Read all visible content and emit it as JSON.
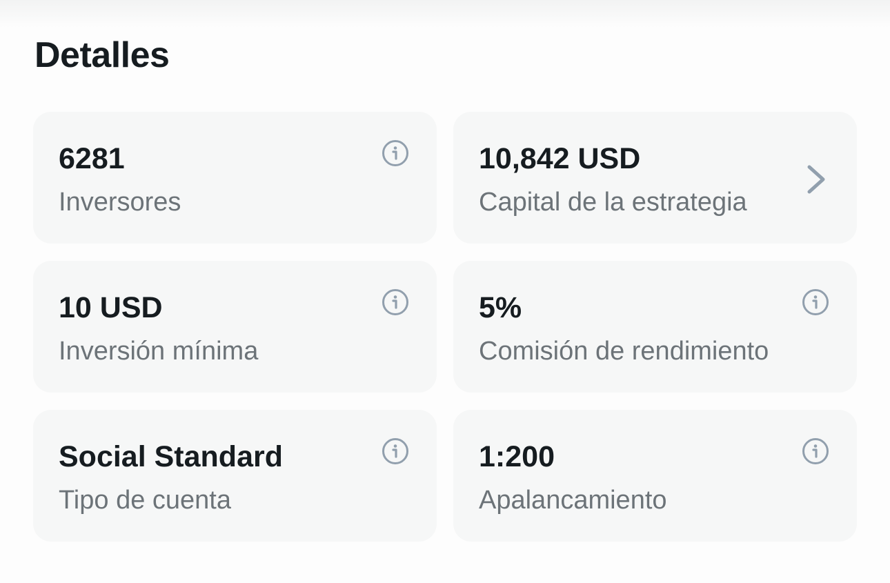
{
  "section_title": "Detalles",
  "cards": [
    {
      "value": "6281",
      "label": "Inversores",
      "icon": "info-icon"
    },
    {
      "value": "10,842 USD",
      "label": "Capital de la estrategia",
      "icon": "chevron-right-icon"
    },
    {
      "value": "10 USD",
      "label": "Inversión mínima",
      "icon": "info-icon"
    },
    {
      "value": "5%",
      "label": "Comisión de rendimiento",
      "icon": "info-icon"
    },
    {
      "value": "Social Standard",
      "label": "Tipo de cuenta",
      "icon": "info-icon"
    },
    {
      "value": "1:200",
      "label": "Apalancamiento",
      "icon": "info-icon"
    }
  ],
  "colors": {
    "card_bg": "#f6f7f7",
    "icon": "#919fad",
    "text": "#161c20",
    "label": "#6c7378"
  }
}
